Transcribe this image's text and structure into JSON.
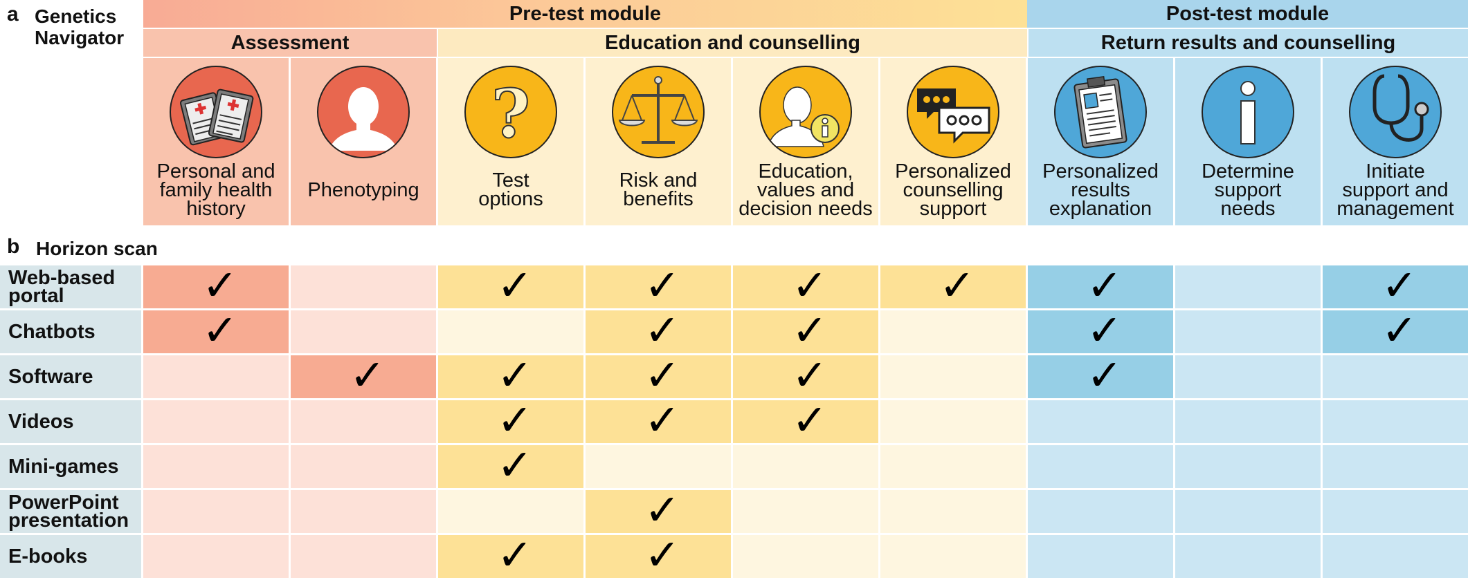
{
  "panel_a": {
    "letter": "a",
    "title": "Genetics\nNavigator",
    "modules": [
      {
        "label": "Pre-test module",
        "color": "#f8b196"
      },
      {
        "label": "Post-test module",
        "color": "#a9d5ec"
      }
    ],
    "sections": [
      {
        "label": "Assessment",
        "color": "#f9c3ad"
      },
      {
        "label": "Education and counselling",
        "color": "#fdeac0"
      },
      {
        "label": "Return results and counselling",
        "color": "#bde0f1"
      }
    ],
    "columns": [
      {
        "label": "Personal and\nfamily health\nhistory",
        "icon": "clipboard-icon"
      },
      {
        "label": "Phenotyping",
        "icon": "person-silhouette-icon"
      },
      {
        "label": "Test\noptions",
        "icon": "question-mark-icon"
      },
      {
        "label": "Risk and\nbenefits",
        "icon": "scales-icon"
      },
      {
        "label": "Education,\nvalues and\ndecision needs",
        "icon": "person-info-icon"
      },
      {
        "label": "Personalized\ncounselling\nsupport",
        "icon": "chat-bubbles-icon"
      },
      {
        "label": "Personalized\nresults\nexplanation",
        "icon": "report-clipboard-icon"
      },
      {
        "label": "Determine\nsupport\nneeds",
        "icon": "info-icon"
      },
      {
        "label": "Initiate\nsupport and\nmanagement",
        "icon": "stethoscope-icon"
      }
    ]
  },
  "panel_b": {
    "letter": "b",
    "title": "Horizon scan",
    "check_symbol": "✓",
    "rows": [
      {
        "label": "Web-based\nportal",
        "checks": [
          1,
          0,
          1,
          1,
          1,
          1,
          1,
          0,
          1
        ]
      },
      {
        "label": "Chatbots",
        "checks": [
          1,
          0,
          0,
          1,
          1,
          0,
          1,
          0,
          1
        ]
      },
      {
        "label": "Software",
        "checks": [
          0,
          1,
          1,
          1,
          1,
          0,
          1,
          0,
          0
        ]
      },
      {
        "label": "Videos",
        "checks": [
          0,
          0,
          1,
          1,
          1,
          0,
          0,
          0,
          0
        ]
      },
      {
        "label": "Mini-games",
        "checks": [
          0,
          0,
          1,
          0,
          0,
          0,
          0,
          0,
          0
        ]
      },
      {
        "label": "PowerPoint\npresentation",
        "checks": [
          0,
          0,
          0,
          1,
          0,
          0,
          0,
          0,
          0
        ]
      },
      {
        "label": "E-books",
        "checks": [
          0,
          0,
          1,
          1,
          0,
          0,
          0,
          0,
          0
        ]
      }
    ]
  },
  "colors": {
    "pre_dark": "#f7ab92",
    "pre_light": "#fde1d8",
    "edu_dark": "#fde196",
    "edu_light": "#fef6e0",
    "post_dark": "#96cfe6",
    "post_light": "#cbe6f3",
    "assess_icon_bg": "#e8674f",
    "edu_icon_bg": "#f8b619",
    "post_icon_bg": "#4fa7d8"
  }
}
